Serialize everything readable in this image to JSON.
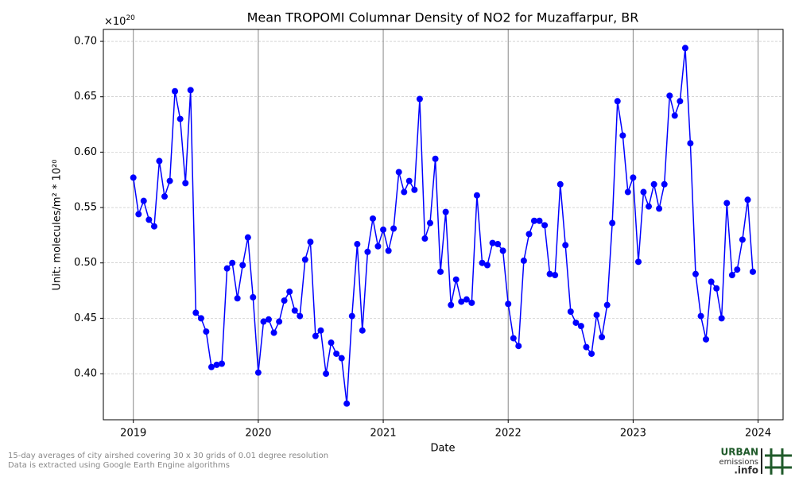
{
  "chart_data": {
    "type": "line",
    "title": "Mean TROPOMI Columnar Density of NO2 for Muzaffarpur, BR",
    "xlabel": "Date",
    "ylabel": "Unit: molecules/m² * 10²⁰",
    "offset_text": {
      "base": "×10",
      "exponent": "20"
    },
    "color": "#0000ff",
    "grid": true,
    "x": [
      2019,
      2019.042,
      2019.083,
      2019.125,
      2019.167,
      2019.208,
      2019.25,
      2019.292,
      2019.333,
      2019.375,
      2019.417,
      2019.458,
      2019.5,
      2019.542,
      2019.583,
      2019.625,
      2019.667,
      2019.708,
      2019.75,
      2019.792,
      2019.833,
      2019.875,
      2019.917,
      2019.958,
      2020,
      2020.042,
      2020.083,
      2020.125,
      2020.167,
      2020.208,
      2020.25,
      2020.292,
      2020.333,
      2020.375,
      2020.417,
      2020.458,
      2020.5,
      2020.542,
      2020.583,
      2020.625,
      2020.667,
      2020.708,
      2020.75,
      2020.792,
      2020.833,
      2020.875,
      2020.917,
      2020.958,
      2021,
      2021.042,
      2021.083,
      2021.125,
      2021.167,
      2021.208,
      2021.25,
      2021.292,
      2021.333,
      2021.375,
      2021.417,
      2021.458,
      2021.5,
      2021.542,
      2021.583,
      2021.625,
      2021.667,
      2021.708,
      2021.75,
      2021.792,
      2021.833,
      2021.875,
      2021.917,
      2021.958,
      2022,
      2022.042,
      2022.083,
      2022.125,
      2022.167,
      2022.208,
      2022.25,
      2022.292,
      2022.333,
      2022.375,
      2022.417,
      2022.458,
      2022.5,
      2022.542,
      2022.583,
      2022.625,
      2022.667,
      2022.708,
      2022.75,
      2022.792,
      2022.833,
      2022.875,
      2022.917,
      2022.958,
      2023,
      2023.042,
      2023.083,
      2023.125,
      2023.167,
      2023.208,
      2023.25,
      2023.292,
      2023.333,
      2023.375,
      2023.417,
      2023.458,
      2023.5,
      2023.542,
      2023.583,
      2023.625,
      2023.667,
      2023.708,
      2023.75,
      2023.792,
      2023.833,
      2023.875,
      2023.917,
      2023.958
    ],
    "values": [
      0.577,
      0.544,
      0.556,
      0.539,
      0.533,
      0.592,
      0.56,
      0.574,
      0.655,
      0.63,
      0.572,
      0.656,
      0.455,
      0.45,
      0.438,
      0.406,
      0.408,
      0.409,
      0.495,
      0.5,
      0.468,
      0.498,
      0.523,
      0.469,
      0.401,
      0.447,
      0.449,
      0.437,
      0.447,
      0.466,
      0.474,
      0.457,
      0.452,
      0.503,
      0.519,
      0.434,
      0.439,
      0.4,
      0.428,
      0.418,
      0.414,
      0.373,
      0.452,
      0.517,
      0.439,
      0.51,
      0.54,
      0.515,
      0.53,
      0.511,
      0.531,
      0.582,
      0.564,
      0.574,
      0.566,
      0.648,
      0.522,
      0.536,
      0.594,
      0.492,
      0.546,
      0.462,
      0.485,
      0.465,
      0.467,
      0.464,
      0.561,
      0.5,
      0.498,
      0.518,
      0.517,
      0.511,
      0.463,
      0.432,
      0.425,
      0.502,
      0.526,
      0.538,
      0.538,
      0.534,
      0.49,
      0.489,
      0.571,
      0.516,
      0.456,
      0.446,
      0.443,
      0.424,
      0.418,
      0.453,
      0.433,
      0.462,
      0.536,
      0.646,
      0.615,
      0.564,
      0.577,
      0.501,
      0.564,
      0.551,
      0.571,
      0.549,
      0.571,
      0.651,
      0.633,
      0.646,
      0.694,
      0.608,
      0.49,
      0.452,
      0.431,
      0.483,
      0.477,
      0.45,
      0.554,
      0.489,
      0.494,
      0.521,
      0.557,
      0.492
    ],
    "xlim": [
      2018.76,
      2024.2
    ],
    "ylim": [
      0.3584,
      0.7108
    ],
    "xticks": [
      2019,
      2020,
      2021,
      2022,
      2023,
      2024
    ],
    "yticks": [
      {
        "value": 0.4,
        "label": "0.40"
      },
      0.45,
      {
        "value": 0.5,
        "label": "0.50"
      },
      0.55,
      {
        "value": 0.6,
        "label": "0.60"
      },
      0.65,
      {
        "value": 0.7,
        "label": "0.70"
      }
    ]
  },
  "footer": {
    "notes": [
      "15-day averages of city airshed covering 30 x 30 grids of 0.01 degree resolution",
      "Data is extracted using Google Earth Engine algorithms"
    ],
    "logo": {
      "line1": "URBAN",
      "line2": "emissions",
      "line3": ".info"
    }
  }
}
